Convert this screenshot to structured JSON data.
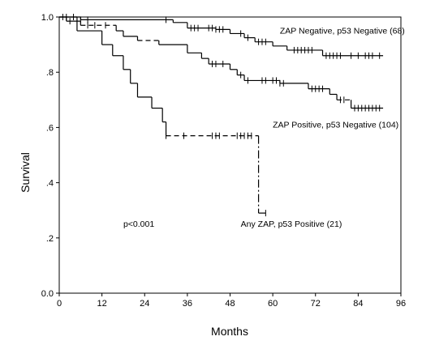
{
  "chart_data": {
    "type": "line",
    "title": "",
    "xlabel": "Months",
    "ylabel": "Survival",
    "xlim": [
      0,
      96
    ],
    "ylim": [
      0,
      1.0
    ],
    "x_ticks": [
      0,
      12,
      24,
      36,
      48,
      60,
      72,
      84,
      96
    ],
    "x_tick_labels": [
      "0",
      "12",
      "24",
      "36",
      "48",
      "60",
      "72",
      "84",
      "96"
    ],
    "y_ticks": [
      0,
      0.2,
      0.4,
      0.6,
      0.8,
      1.0
    ],
    "y_tick_labels": [
      "0.0",
      ".2",
      ".4",
      ".6",
      ".8",
      "1.0"
    ],
    "grid": false,
    "legend": "none",
    "series": [
      {
        "name": "ZAP Negative, p53 Negative (68)",
        "line_style": "solid",
        "steps": [
          [
            0,
            1.0
          ],
          [
            6,
            0.99
          ],
          [
            32,
            0.98
          ],
          [
            36,
            0.96
          ],
          [
            44,
            0.955
          ],
          [
            48,
            0.94
          ],
          [
            52,
            0.925
          ],
          [
            55,
            0.91
          ],
          [
            60,
            0.895
          ],
          [
            64,
            0.88
          ],
          [
            74,
            0.86
          ],
          [
            96,
            0.86
          ]
        ],
        "end_x": 91,
        "censored": [
          2,
          4,
          6,
          8,
          30,
          37,
          38,
          39,
          42,
          43,
          44,
          45,
          46,
          51,
          53,
          56,
          57,
          58,
          66,
          67,
          68,
          69,
          70,
          71,
          75,
          76,
          77,
          78,
          79,
          82,
          84,
          86,
          87,
          88,
          90
        ]
      },
      {
        "name": "ZAP Positive, p53 Negative (104)",
        "line_style": "mixed",
        "steps": [
          [
            0,
            1.0
          ],
          [
            2,
            0.985
          ],
          [
            6,
            0.97
          ],
          [
            16,
            0.95
          ],
          [
            18,
            0.93
          ],
          [
            22,
            0.915
          ],
          [
            28,
            0.9
          ],
          [
            36,
            0.87
          ],
          [
            40,
            0.85
          ],
          [
            42,
            0.83
          ],
          [
            48,
            0.81
          ],
          [
            50,
            0.79
          ],
          [
            52,
            0.77
          ],
          [
            62,
            0.76
          ],
          [
            70,
            0.74
          ],
          [
            76,
            0.72
          ],
          [
            78,
            0.7
          ],
          [
            82,
            0.67
          ],
          [
            96,
            0.67
          ]
        ],
        "end_x": 91,
        "censored": [
          1,
          3,
          8,
          10,
          13,
          43,
          44,
          46,
          51,
          53,
          57,
          58,
          60,
          61,
          62,
          63,
          71,
          72,
          73,
          74,
          79,
          80,
          83,
          84,
          85,
          86,
          87,
          88,
          89,
          90
        ]
      },
      {
        "name": "Any ZAP, p53 Positive (21)",
        "line_style": "mixed",
        "steps": [
          [
            0,
            1.0
          ],
          [
            5,
            0.95
          ],
          [
            12,
            0.9
          ],
          [
            15,
            0.86
          ],
          [
            18,
            0.81
          ],
          [
            20,
            0.76
          ],
          [
            22,
            0.71
          ],
          [
            26,
            0.67
          ],
          [
            29,
            0.62
          ],
          [
            30,
            0.57
          ],
          [
            56,
            0.29
          ]
        ],
        "end_x": 58,
        "censored": [
          30,
          35,
          43,
          44,
          45,
          50,
          51,
          52,
          53,
          54,
          58
        ]
      }
    ],
    "annotations": [
      {
        "text": "ZAP Negative, p53 Negative (68)",
        "x": 62,
        "y": 0.94
      },
      {
        "text": "ZAP Positive, p53 Negative (104)",
        "x": 60,
        "y": 0.6
      },
      {
        "text": "Any ZAP, p53 Positive (21)",
        "x": 51,
        "y": 0.24
      },
      {
        "text": "p<0.001",
        "x": 18,
        "y": 0.24
      }
    ]
  }
}
